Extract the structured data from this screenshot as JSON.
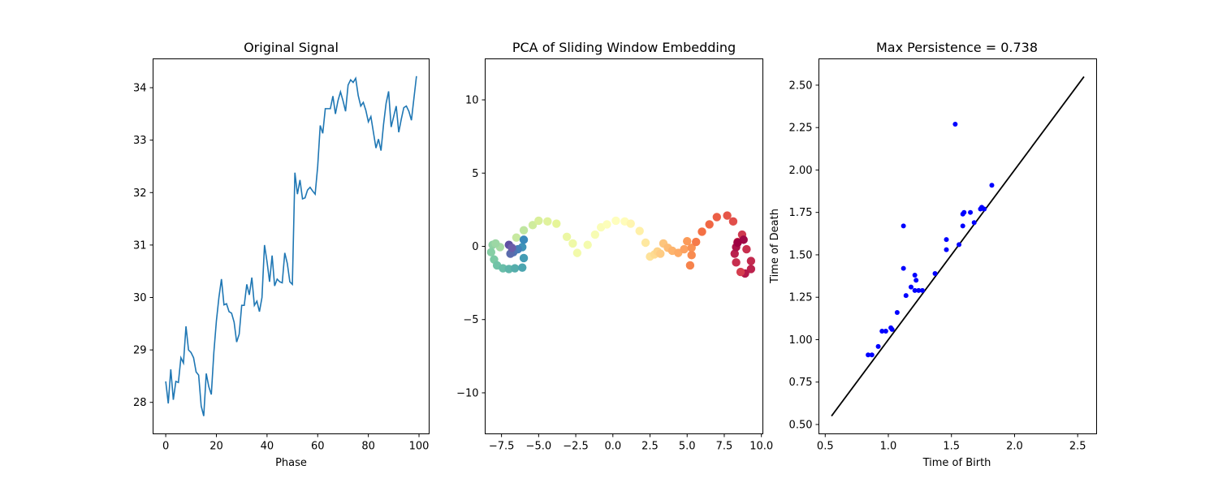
{
  "chart_data": [
    {
      "type": "line",
      "title": "Original Signal",
      "xlabel": "Phase",
      "ylabel": "",
      "xlim": [
        -5,
        104
      ],
      "ylim": [
        27.4,
        34.55
      ],
      "xticks": [
        0,
        20,
        40,
        60,
        80,
        100
      ],
      "xtick_labels": [
        "0",
        "20",
        "40",
        "60",
        "80",
        "100"
      ],
      "yticks": [
        28,
        29,
        30,
        31,
        32,
        33,
        34
      ],
      "ytick_labels": [
        "28",
        "29",
        "30",
        "31",
        "32",
        "33",
        "34"
      ],
      "grid": false,
      "color": "#1f77b4",
      "series": [
        {
          "x": [
            0,
            1,
            2,
            3,
            4,
            5,
            6,
            7,
            8,
            9,
            10,
            11,
            12,
            13,
            14,
            15,
            16,
            17,
            18,
            19,
            20,
            21,
            22,
            23,
            24,
            25,
            26,
            27,
            28,
            29,
            30,
            31,
            32,
            33,
            34,
            35,
            36,
            37,
            38,
            39,
            40,
            41,
            42,
            43,
            44,
            45,
            46,
            47,
            48,
            49,
            50,
            51,
            52,
            53,
            54,
            55,
            56,
            57,
            58,
            59,
            60,
            61,
            62,
            63,
            64,
            65,
            66,
            67,
            68,
            69,
            70,
            71,
            72,
            73,
            74,
            75,
            76,
            77,
            78,
            79,
            80,
            81,
            82,
            83,
            84,
            85,
            86,
            87,
            88,
            89,
            90,
            91,
            92,
            93,
            94,
            95,
            96,
            97,
            98,
            99
          ],
          "y": [
            28.4,
            27.98,
            28.63,
            28.05,
            28.4,
            28.38,
            28.85,
            28.75,
            29.45,
            29.0,
            28.95,
            28.85,
            28.58,
            28.52,
            27.93,
            27.74,
            28.55,
            28.3,
            28.15,
            28.95,
            29.55,
            30.0,
            30.35,
            29.86,
            29.88,
            29.73,
            29.7,
            29.53,
            29.15,
            29.3,
            29.85,
            29.85,
            30.25,
            30.05,
            30.38,
            29.85,
            29.93,
            29.73,
            30.0,
            31.0,
            30.68,
            30.3,
            30.8,
            30.22,
            30.35,
            30.3,
            30.28,
            30.85,
            30.65,
            30.3,
            30.25,
            32.38,
            31.97,
            32.24,
            31.88,
            31.9,
            32.05,
            32.1,
            32.03,
            31.97,
            32.5,
            33.28,
            33.13,
            33.6,
            33.6,
            33.6,
            33.84,
            33.5,
            33.75,
            33.92,
            33.75,
            33.55,
            34.05,
            34.15,
            34.1,
            34.18,
            33.85,
            33.65,
            33.72,
            33.57,
            33.35,
            33.45,
            33.15,
            32.85,
            33.02,
            32.8,
            33.3,
            33.7,
            33.93,
            33.25,
            33.45,
            33.65,
            33.15,
            33.4,
            33.62,
            33.65,
            33.55,
            33.38,
            33.8,
            34.22
          ]
        }
      ]
    },
    {
      "type": "scatter",
      "title": "PCA of Sliding Window Embedding",
      "xlabel": "",
      "ylabel": "",
      "xlim": [
        -8.6,
        10.1
      ],
      "ylim": [
        -12.8,
        12.8
      ],
      "xticks": [
        -7.5,
        -5.0,
        -2.5,
        0.0,
        2.5,
        5.0,
        7.5,
        10.0
      ],
      "xtick_labels": [
        "−7.5",
        "−5.0",
        "−2.5",
        "0.0",
        "2.5",
        "5.0",
        "7.5",
        "10.0"
      ],
      "yticks": [
        -10,
        -5,
        0,
        5,
        10
      ],
      "ytick_labels": [
        "−10",
        "−5",
        "0",
        "5",
        "10"
      ],
      "grid": false,
      "colormap": "Spectral",
      "points": [
        {
          "x": -6.5,
          "y": 0.6,
          "c": "#c7e9a0"
        },
        {
          "x": -6.0,
          "y": 1.1,
          "c": "#bfe5a0"
        },
        {
          "x": -5.4,
          "y": 1.45,
          "c": "#cfec9d"
        },
        {
          "x": -5.0,
          "y": 1.75,
          "c": "#d9ef9b"
        },
        {
          "x": -4.4,
          "y": 1.7,
          "c": "#e0f29d"
        },
        {
          "x": -3.8,
          "y": 1.55,
          "c": "#e6f598"
        },
        {
          "x": -3.1,
          "y": 0.65,
          "c": "#ecf7a4"
        },
        {
          "x": -2.7,
          "y": 0.2,
          "c": "#eff9a6"
        },
        {
          "x": -2.4,
          "y": -0.45,
          "c": "#f2faaa"
        },
        {
          "x": -1.7,
          "y": 0.1,
          "c": "#f4fbae"
        },
        {
          "x": -1.2,
          "y": 0.8,
          "c": "#f7fcb3"
        },
        {
          "x": -0.8,
          "y": 1.3,
          "c": "#fafdb8"
        },
        {
          "x": -0.4,
          "y": 1.5,
          "c": "#fcfeba"
        },
        {
          "x": 0.2,
          "y": 1.75,
          "c": "#fefebd"
        },
        {
          "x": 0.8,
          "y": 1.7,
          "c": "#fffcba"
        },
        {
          "x": 1.2,
          "y": 1.55,
          "c": "#fff5b0"
        },
        {
          "x": 1.8,
          "y": 1.05,
          "c": "#fff0a8"
        },
        {
          "x": 2.2,
          "y": 0.25,
          "c": "#fee8a0"
        },
        {
          "x": 2.5,
          "y": -0.7,
          "c": "#fee29a"
        },
        {
          "x": 2.8,
          "y": -0.55,
          "c": "#fedb91"
        },
        {
          "x": 3.0,
          "y": -0.35,
          "c": "#fed48a"
        },
        {
          "x": 3.2,
          "y": -0.5,
          "c": "#fecc84"
        },
        {
          "x": 3.4,
          "y": 0.2,
          "c": "#fdc57d"
        },
        {
          "x": 3.7,
          "y": -0.1,
          "c": "#fdbd76"
        },
        {
          "x": 4.0,
          "y": -0.3,
          "c": "#fdb36c"
        },
        {
          "x": 4.4,
          "y": -0.45,
          "c": "#fdab66"
        },
        {
          "x": 4.8,
          "y": -0.2,
          "c": "#fca160"
        },
        {
          "x": 5.0,
          "y": 0.35,
          "c": "#fb9a59"
        },
        {
          "x": 5.3,
          "y": -0.1,
          "c": "#f99355"
        },
        {
          "x": 5.3,
          "y": -0.6,
          "c": "#f88b50"
        },
        {
          "x": 5.2,
          "y": -1.3,
          "c": "#f6834c"
        },
        {
          "x": 5.6,
          "y": 0.3,
          "c": "#f67a49"
        },
        {
          "x": 6.0,
          "y": 1.0,
          "c": "#f47044"
        },
        {
          "x": 6.5,
          "y": 1.5,
          "c": "#f06744"
        },
        {
          "x": 7.0,
          "y": 2.0,
          "c": "#ec5f46"
        },
        {
          "x": 7.7,
          "y": 2.1,
          "c": "#e65648"
        },
        {
          "x": 8.1,
          "y": 1.7,
          "c": "#e14e4a"
        },
        {
          "x": 8.4,
          "y": 0.3,
          "c": "#d6404e"
        },
        {
          "x": 8.7,
          "y": 0.8,
          "c": "#cf3950"
        },
        {
          "x": 9.0,
          "y": -0.2,
          "c": "#c8304f"
        },
        {
          "x": 9.3,
          "y": -1.0,
          "c": "#c22a4e"
        },
        {
          "x": 9.3,
          "y": -1.55,
          "c": "#bb224d"
        },
        {
          "x": 8.9,
          "y": -1.85,
          "c": "#b4194b"
        },
        {
          "x": 8.6,
          "y": -1.75,
          "c": "#d53e4f"
        },
        {
          "x": 8.3,
          "y": -1.1,
          "c": "#c72e4f"
        },
        {
          "x": 8.2,
          "y": -0.5,
          "c": "#b9204c"
        },
        {
          "x": 8.3,
          "y": -0.05,
          "c": "#ab1148"
        },
        {
          "x": 8.8,
          "y": 0.45,
          "c": "#a00946"
        },
        {
          "x": 8.4,
          "y": 0.25,
          "c": "#9e0142"
        },
        {
          "x": -8.1,
          "y": 0.1,
          "c": "#8fd2a4"
        },
        {
          "x": -8.2,
          "y": -0.4,
          "c": "#86cfa5"
        },
        {
          "x": -8.0,
          "y": -0.9,
          "c": "#7ccaa5"
        },
        {
          "x": -7.8,
          "y": -1.3,
          "c": "#72c3a7"
        },
        {
          "x": -7.4,
          "y": -1.5,
          "c": "#68bda8"
        },
        {
          "x": -7.0,
          "y": -1.55,
          "c": "#5eb5a9"
        },
        {
          "x": -6.6,
          "y": -1.5,
          "c": "#55adab"
        },
        {
          "x": -6.1,
          "y": -1.45,
          "c": "#4ca5b0"
        },
        {
          "x": -6.0,
          "y": -0.8,
          "c": "#449cb4"
        },
        {
          "x": -6.1,
          "y": -0.05,
          "c": "#3f93b8"
        },
        {
          "x": -6.0,
          "y": 0.45,
          "c": "#3a89bb"
        },
        {
          "x": -6.4,
          "y": -0.2,
          "c": "#4480b9"
        },
        {
          "x": -6.7,
          "y": -0.4,
          "c": "#4f76b3"
        },
        {
          "x": -6.9,
          "y": -0.5,
          "c": "#5a6bad"
        },
        {
          "x": -7.0,
          "y": 0.1,
          "c": "#5e4fa2"
        },
        {
          "x": -6.8,
          "y": -0.1,
          "c": "#6b5da8"
        },
        {
          "x": -7.6,
          "y": -0.05,
          "c": "#a6dba4"
        },
        {
          "x": -7.9,
          "y": 0.2,
          "c": "#9cd7a4"
        }
      ]
    },
    {
      "type": "scatter",
      "title": "Max Persistence = 0.738",
      "xlabel": "Time of Birth",
      "ylabel": "Time of Death",
      "xlim": [
        0.45,
        2.65
      ],
      "ylim": [
        0.445,
        2.655
      ],
      "xticks": [
        0.5,
        1.0,
        1.5,
        2.0,
        2.5
      ],
      "xtick_labels": [
        "0.5",
        "1.0",
        "1.5",
        "2.0",
        "2.5"
      ],
      "yticks": [
        0.5,
        0.75,
        1.0,
        1.25,
        1.5,
        1.75,
        2.0,
        2.25,
        2.5
      ],
      "ytick_labels": [
        "0.50",
        "0.75",
        "1.00",
        "1.25",
        "1.50",
        "1.75",
        "2.00",
        "2.25",
        "2.50"
      ],
      "grid": false,
      "point_color": "#0000ff",
      "diagonal": {
        "from": 0.55,
        "to": 2.55,
        "color": "#000000"
      },
      "points": [
        {
          "x": 0.84,
          "y": 0.91
        },
        {
          "x": 0.87,
          "y": 0.91
        },
        {
          "x": 0.92,
          "y": 0.96
        },
        {
          "x": 0.95,
          "y": 1.05
        },
        {
          "x": 0.98,
          "y": 1.05
        },
        {
          "x": 1.02,
          "y": 1.07
        },
        {
          "x": 1.03,
          "y": 1.06
        },
        {
          "x": 1.07,
          "y": 1.16
        },
        {
          "x": 1.12,
          "y": 1.42
        },
        {
          "x": 1.12,
          "y": 1.67
        },
        {
          "x": 1.14,
          "y": 1.26
        },
        {
          "x": 1.18,
          "y": 1.31
        },
        {
          "x": 1.21,
          "y": 1.38
        },
        {
          "x": 1.22,
          "y": 1.35
        },
        {
          "x": 1.21,
          "y": 1.29
        },
        {
          "x": 1.24,
          "y": 1.29
        },
        {
          "x": 1.27,
          "y": 1.29
        },
        {
          "x": 1.37,
          "y": 1.39
        },
        {
          "x": 1.46,
          "y": 1.53
        },
        {
          "x": 1.46,
          "y": 1.59
        },
        {
          "x": 1.53,
          "y": 2.27
        },
        {
          "x": 1.56,
          "y": 1.56
        },
        {
          "x": 1.59,
          "y": 1.67
        },
        {
          "x": 1.59,
          "y": 1.74
        },
        {
          "x": 1.6,
          "y": 1.75
        },
        {
          "x": 1.65,
          "y": 1.75
        },
        {
          "x": 1.68,
          "y": 1.69
        },
        {
          "x": 1.73,
          "y": 1.77
        },
        {
          "x": 1.74,
          "y": 1.78
        },
        {
          "x": 1.76,
          "y": 1.77
        },
        {
          "x": 1.82,
          "y": 1.91
        }
      ]
    }
  ]
}
